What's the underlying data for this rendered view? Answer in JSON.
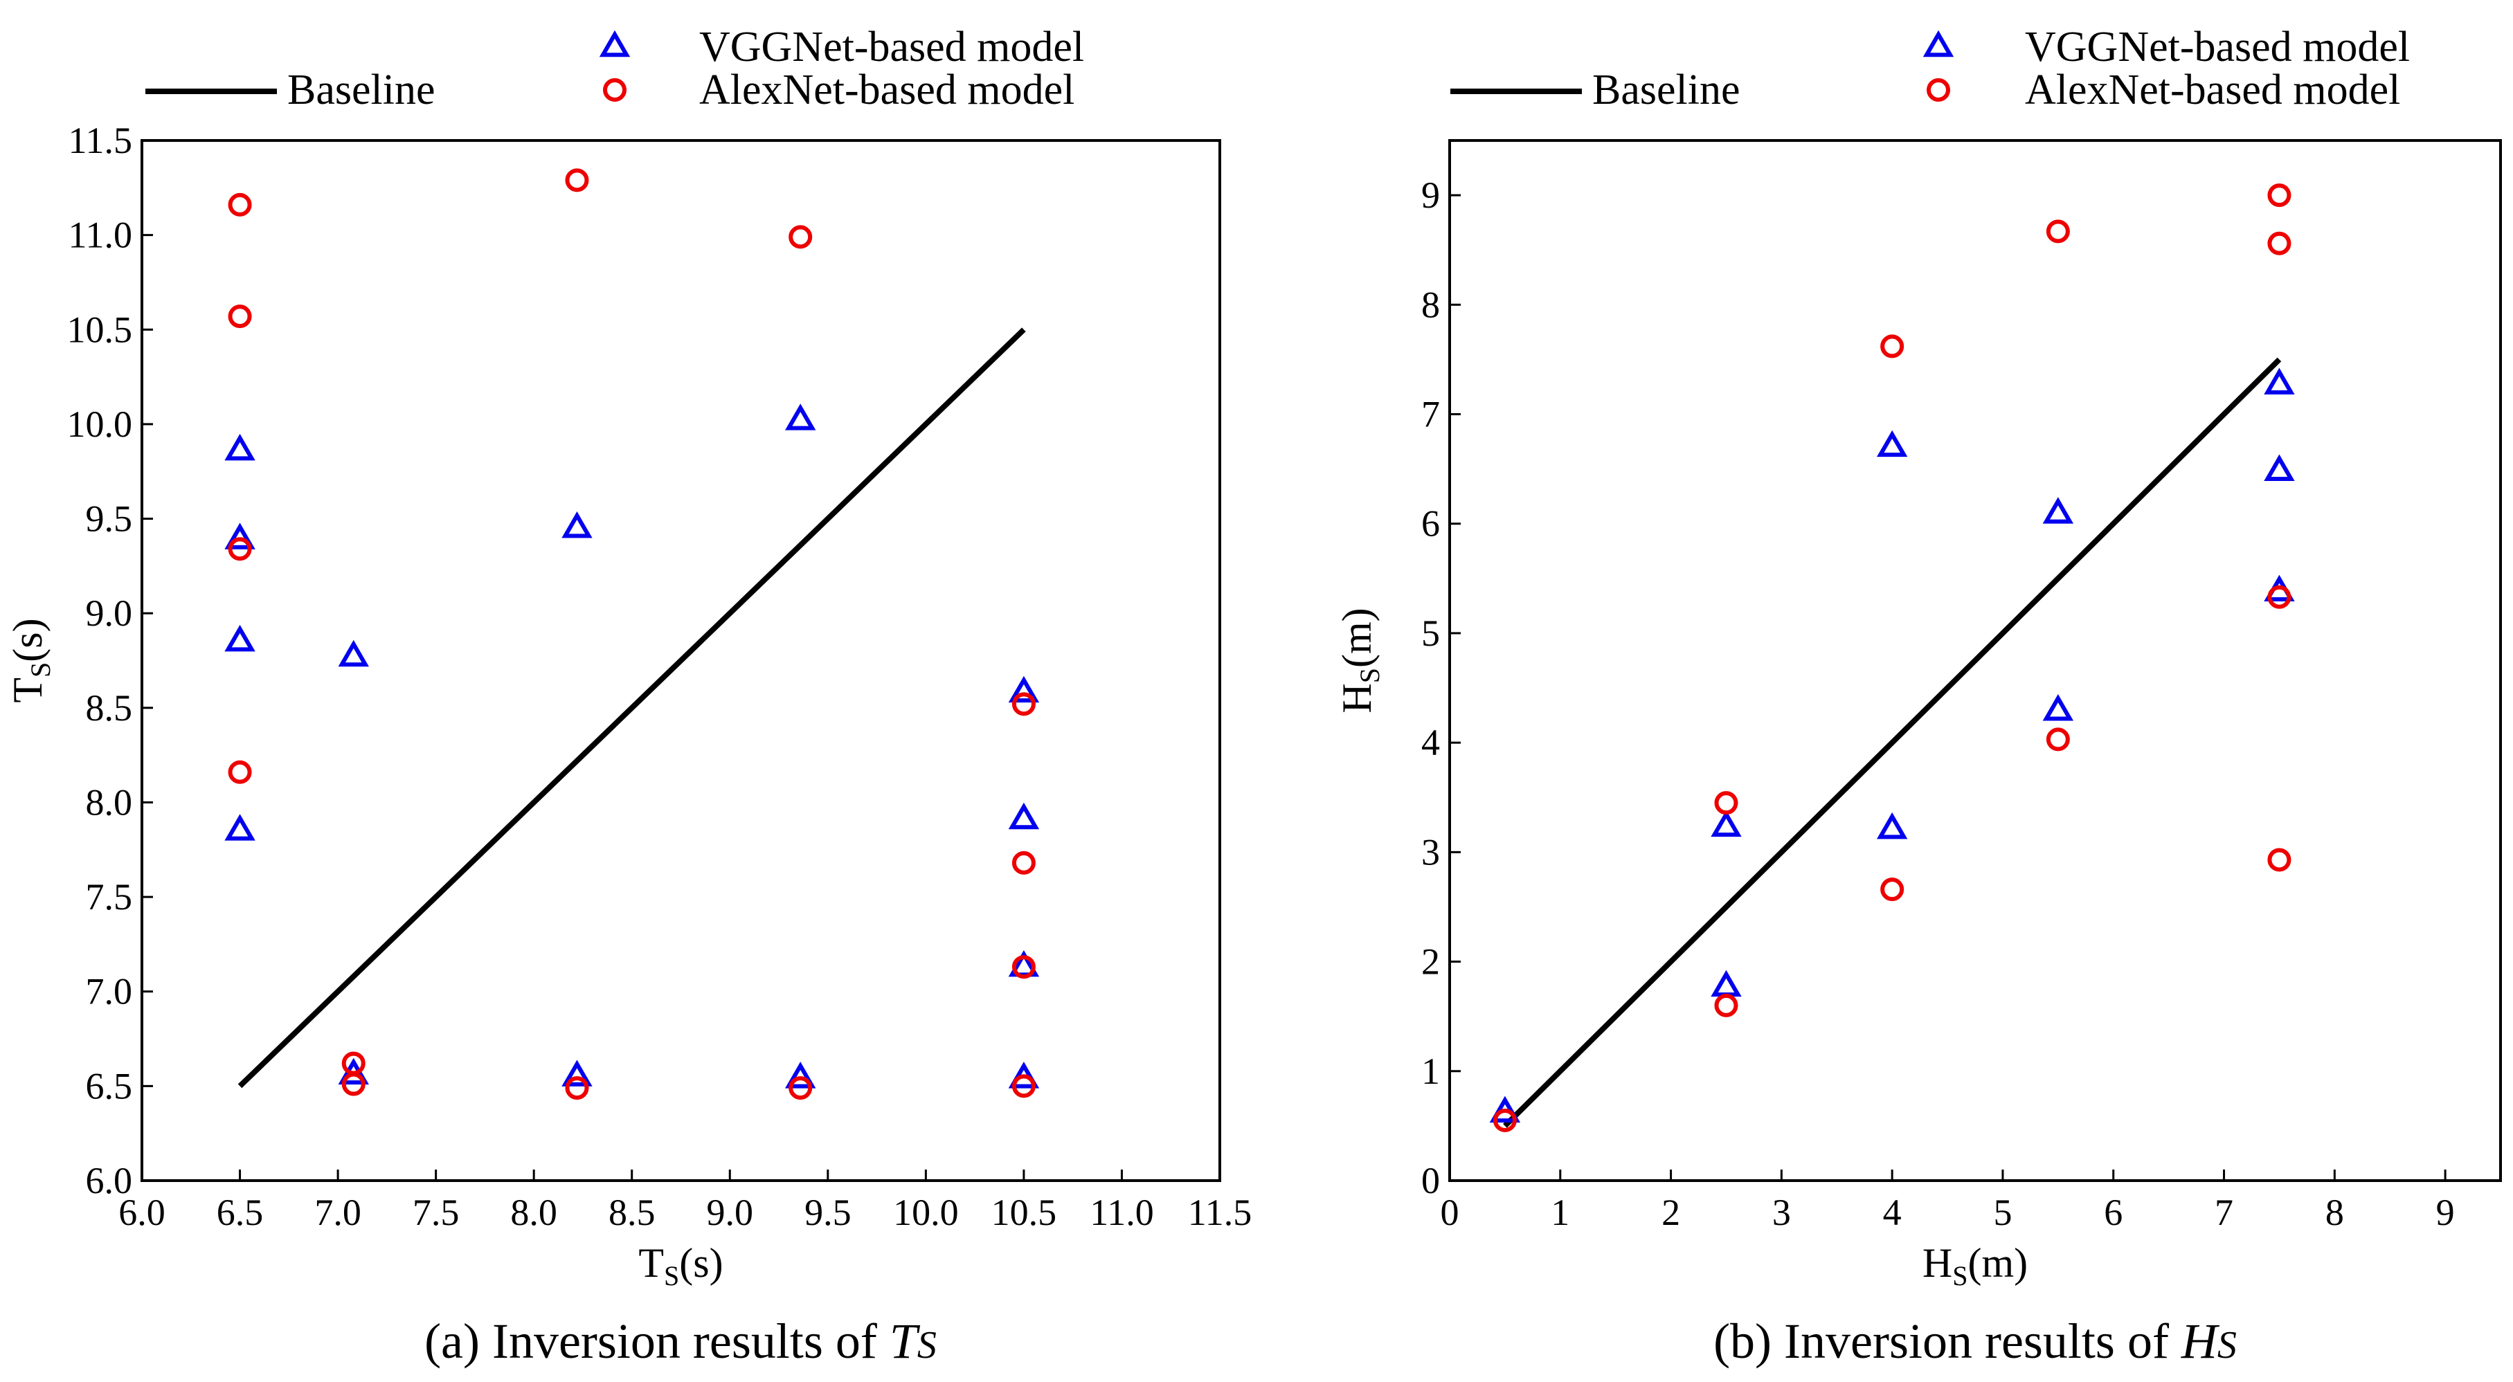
{
  "figure": {
    "colors": {
      "baseline": "#000000",
      "vggnet": "#0000ee",
      "alexnet": "#ee0000",
      "frame": "#000000"
    }
  },
  "chart_data": [
    {
      "type": "scatter",
      "title": "",
      "caption": {
        "prefix": "(a) Inversion results of ",
        "symbol": "T",
        "subscript": "S"
      },
      "xlabel": {
        "main": "T",
        "sub": "S",
        "unit": "(s)"
      },
      "ylabel": {
        "main": "T",
        "sub": "S",
        "unit": "(s)"
      },
      "xlim": [
        6.0,
        11.5
      ],
      "ylim": [
        6.0,
        11.5
      ],
      "xticks": [
        "6.0",
        "6.5",
        "7.0",
        "7.5",
        "8.0",
        "8.5",
        "9.0",
        "9.5",
        "10.0",
        "10.5",
        "11.0",
        "11.5"
      ],
      "yticks": [
        "6.0",
        "6.5",
        "7.0",
        "7.5",
        "8.0",
        "8.5",
        "9.0",
        "9.5",
        "10.0",
        "10.5",
        "11.0",
        "11.5"
      ],
      "legend": {
        "baseline": "Baseline",
        "vggnet": "VGGNet-based model",
        "alexnet": "AlexNet-based model"
      },
      "series": [
        {
          "name": "Baseline",
          "marker": "line",
          "x": [
            6.5,
            10.5
          ],
          "y": [
            6.5,
            10.5
          ]
        },
        {
          "name": "VGGNet-based model",
          "marker": "triangle",
          "x": [
            6.5,
            6.5,
            6.5,
            6.5,
            7.08,
            7.08,
            8.22,
            8.22,
            9.36,
            9.36,
            10.5,
            10.5,
            10.5,
            10.5
          ],
          "y": [
            9.86,
            9.39,
            8.85,
            7.85,
            8.77,
            6.56,
            9.45,
            6.55,
            10.02,
            6.54,
            8.58,
            7.91,
            7.13,
            6.54
          ]
        },
        {
          "name": "AlexNet-based model",
          "marker": "circle",
          "x": [
            6.5,
            6.5,
            6.5,
            6.5,
            7.08,
            7.08,
            8.22,
            8.22,
            9.36,
            9.36,
            10.5,
            10.5,
            10.5,
            10.5
          ],
          "y": [
            11.16,
            10.57,
            9.34,
            8.16,
            6.62,
            6.51,
            11.29,
            6.49,
            10.99,
            6.49,
            8.52,
            7.68,
            7.13,
            6.5
          ]
        }
      ]
    },
    {
      "type": "scatter",
      "title": "",
      "caption": {
        "prefix": "(b) Inversion results of ",
        "symbol": "H",
        "subscript": "S"
      },
      "xlabel": {
        "main": "H",
        "sub": "S",
        "unit": "(m)"
      },
      "ylabel": {
        "main": "H",
        "sub": "S",
        "unit": "(m)"
      },
      "xlim": [
        0,
        9.5
      ],
      "ylim": [
        0,
        9.5
      ],
      "xticks": [
        "0",
        "1",
        "2",
        "3",
        "4",
        "5",
        "6",
        "7",
        "8",
        "9"
      ],
      "yticks": [
        "0",
        "1",
        "2",
        "3",
        "4",
        "5",
        "6",
        "7",
        "8",
        "9"
      ],
      "legend": {
        "baseline": "Baseline",
        "vggnet": "VGGNet-based model",
        "alexnet": "AlexNet-based model"
      },
      "series": [
        {
          "name": "Baseline",
          "marker": "line",
          "x": [
            0.5,
            7.5
          ],
          "y": [
            0.5,
            7.5
          ]
        },
        {
          "name": "VGGNet-based model",
          "marker": "triangle",
          "x": [
            0.5,
            2.5,
            2.5,
            4.0,
            4.0,
            5.5,
            5.5,
            7.5,
            7.5,
            7.5
          ],
          "y": [
            0.62,
            3.23,
            1.77,
            6.7,
            3.21,
            6.09,
            4.29,
            7.27,
            6.48,
            5.38
          ]
        },
        {
          "name": "AlexNet-based model",
          "marker": "circle",
          "x": [
            0.5,
            2.5,
            2.5,
            4.0,
            4.0,
            5.5,
            5.5,
            7.5,
            7.5,
            7.5,
            7.5
          ],
          "y": [
            0.55,
            3.45,
            1.6,
            7.62,
            2.66,
            8.67,
            4.03,
            9.0,
            8.56,
            5.33,
            2.93
          ]
        }
      ]
    }
  ]
}
